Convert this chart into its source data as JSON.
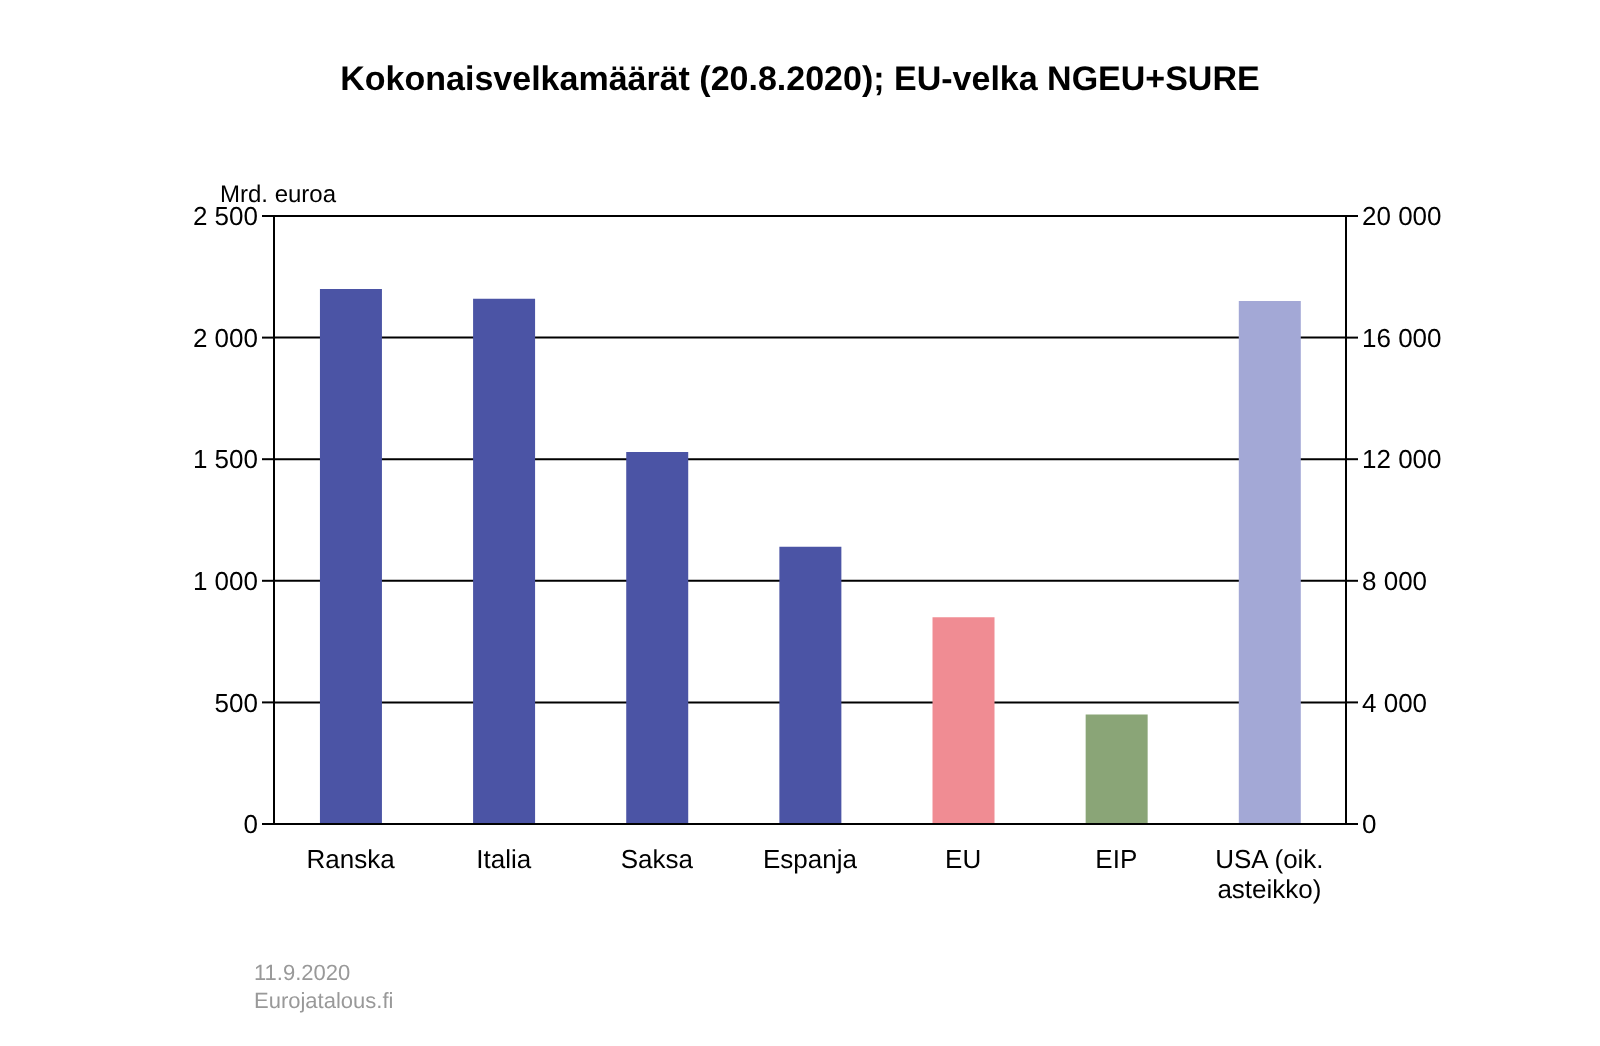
{
  "chart_data": {
    "type": "bar",
    "title": "Kokonaisvelkamäärät (20.8.2020); EU-velka NGEU+SURE",
    "ylabel": "Mrd. euroa",
    "categories": [
      "Ranska",
      "Italia",
      "Saksa",
      "Espanja",
      "EU",
      "EIP",
      "USA (oik. asteikko)"
    ],
    "series": [
      {
        "values": [
          2200,
          2160,
          1530,
          1140,
          850,
          450,
          null
        ],
        "colors": [
          "#4b54a5",
          "#4b54a5",
          "#4b54a5",
          "#4b54a5",
          "#f08c93",
          "#8aa577",
          null
        ]
      },
      {
        "axis": "y2",
        "values": [
          null,
          null,
          null,
          null,
          null,
          null,
          17200
        ],
        "color": "#a3a8d6"
      }
    ],
    "ylim": [
      0,
      2500
    ],
    "yticks": [
      0,
      500,
      {
        "value": 1000,
        "label": "1 000"
      },
      {
        "value": 1500,
        "label": "1 500"
      },
      {
        "value": 2000,
        "label": "2 000"
      },
      {
        "value": 2500,
        "label": "2 500"
      }
    ],
    "y2lim": [
      0,
      20000
    ],
    "y2ticks": [
      0,
      {
        "value": 4000,
        "label": "4 000"
      },
      {
        "value": 8000,
        "label": "8 000"
      },
      {
        "value": 12000,
        "label": "12 000"
      },
      {
        "value": 16000,
        "label": "16 000"
      },
      {
        "value": 20000,
        "label": "20 000"
      }
    ],
    "grid": "y",
    "legend": false,
    "annotations": [
      "11.9.2020",
      "Eurojatalous.fi"
    ]
  }
}
